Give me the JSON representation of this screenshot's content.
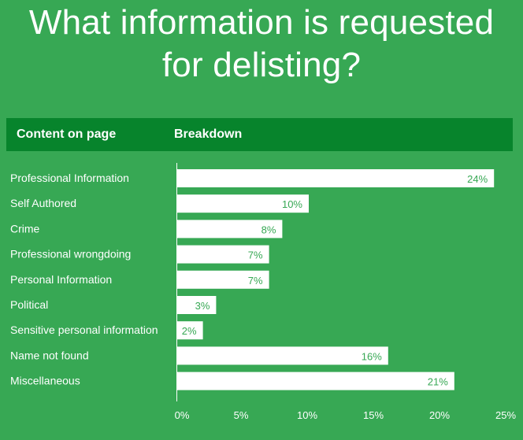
{
  "title_line1": "What information is requested",
  "title_line2": "for delisting?",
  "header": {
    "col1": "Content on page",
    "col2": "Breakdown"
  },
  "colors": {
    "background": "#37a854",
    "header_bar": "#07842c",
    "bar_fill": "#ffffff",
    "bar_label": "#37a854",
    "text": "#ffffff"
  },
  "chart_data": {
    "type": "bar",
    "orientation": "horizontal",
    "categories": [
      "Professional Information",
      "Self Authored",
      "Crime",
      "Professional wrongdoing",
      "Personal Information",
      "Political",
      "Sensitive personal information",
      "Name not found",
      "Miscellaneous"
    ],
    "values": [
      24,
      10,
      8,
      7,
      7,
      3,
      2,
      16,
      21
    ],
    "value_labels": [
      "24%",
      "10%",
      "8%",
      "7%",
      "7%",
      "3%",
      "2%",
      "16%",
      "21%"
    ],
    "xticks": [
      0,
      5,
      10,
      15,
      20,
      25
    ],
    "xtick_labels": [
      "0%",
      "5%",
      "10%",
      "15%",
      "20%",
      "25%"
    ],
    "xlim": [
      0,
      25
    ],
    "grid": false
  }
}
